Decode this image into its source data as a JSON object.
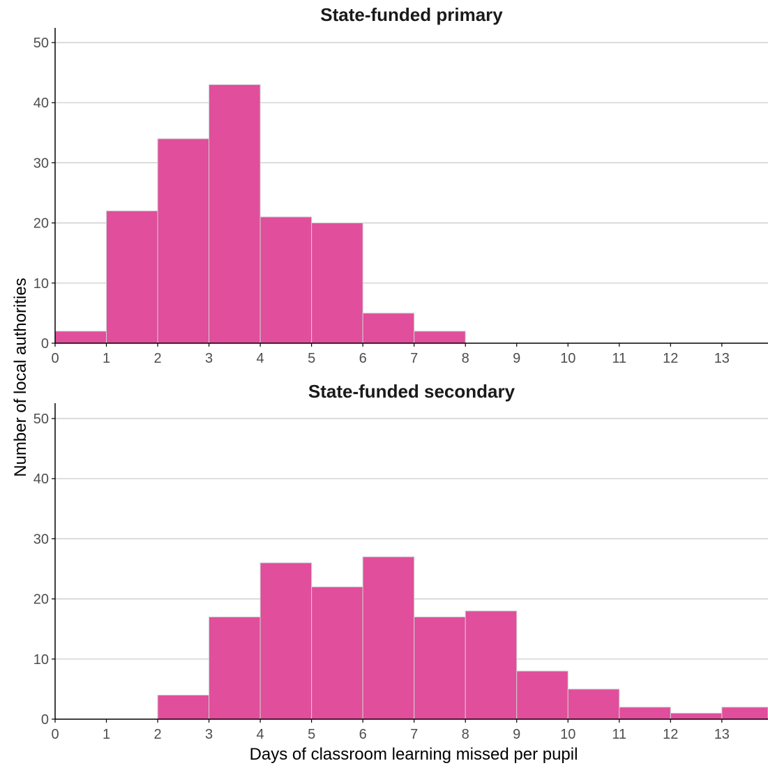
{
  "figure": {
    "ylabel": "Number of local authorities",
    "xlabel": "Days of classroom learning missed per pupil"
  },
  "colors": {
    "bar_fill": "#e04e9c",
    "bar_stroke": "#cfcfcf",
    "grid": "#c8c8c8",
    "axis": "#000000",
    "tick_label": "#4d4d4d",
    "title": "#1a1a1a"
  },
  "chart_data": [
    {
      "type": "bar",
      "subtype": "histogram",
      "title": "State-funded primary",
      "bins": [
        [
          0,
          1
        ],
        [
          1,
          2
        ],
        [
          2,
          3
        ],
        [
          3,
          4
        ],
        [
          4,
          5
        ],
        [
          5,
          6
        ],
        [
          6,
          7
        ],
        [
          7,
          8
        ],
        [
          8,
          9
        ],
        [
          9,
          10
        ],
        [
          10,
          11
        ],
        [
          11,
          12
        ],
        [
          12,
          13
        ],
        [
          13,
          14
        ]
      ],
      "values": [
        2,
        22,
        34,
        43,
        21,
        20,
        5,
        2,
        0,
        0,
        0,
        0,
        0,
        0
      ],
      "xticks": [
        0,
        1,
        2,
        3,
        4,
        5,
        6,
        7,
        8,
        9,
        10,
        11,
        12,
        13
      ],
      "yticks": [
        0,
        10,
        20,
        30,
        40,
        50
      ],
      "xlim": [
        0,
        13.9
      ],
      "ylim": [
        0,
        52
      ],
      "grid": "horizontal"
    },
    {
      "type": "bar",
      "subtype": "histogram",
      "title": "State-funded secondary",
      "bins": [
        [
          0,
          1
        ],
        [
          1,
          2
        ],
        [
          2,
          3
        ],
        [
          3,
          4
        ],
        [
          4,
          5
        ],
        [
          5,
          6
        ],
        [
          6,
          7
        ],
        [
          7,
          8
        ],
        [
          8,
          9
        ],
        [
          9,
          10
        ],
        [
          10,
          11
        ],
        [
          11,
          12
        ],
        [
          12,
          13
        ],
        [
          13,
          14
        ]
      ],
      "values": [
        0,
        0,
        4,
        17,
        26,
        22,
        27,
        17,
        18,
        8,
        5,
        2,
        1,
        2
      ],
      "xticks": [
        0,
        1,
        2,
        3,
        4,
        5,
        6,
        7,
        8,
        9,
        10,
        11,
        12,
        13
      ],
      "yticks": [
        0,
        10,
        20,
        30,
        40,
        50
      ],
      "xlim": [
        0,
        13.9
      ],
      "ylim": [
        0,
        52
      ],
      "grid": "horizontal"
    }
  ]
}
